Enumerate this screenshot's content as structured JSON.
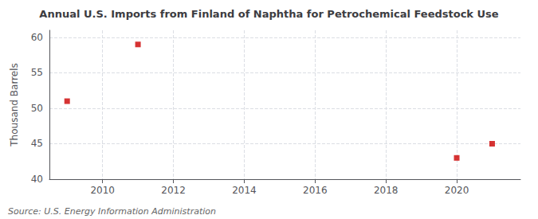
{
  "chart_data": {
    "type": "scatter",
    "title": "Annual U.S. Imports from Finland of Naphtha for Petrochemical Feedstock Use",
    "ylabel": "Thousand Barrels",
    "annotations": [
      "Source: U.S. Energy Information Administration"
    ],
    "x": [
      2009,
      2011,
      2020,
      2021
    ],
    "values": [
      51,
      59,
      43,
      45
    ],
    "color": "#cc0000",
    "marker": "square",
    "xlim": [
      2008.5,
      2021.8
    ],
    "ylim": [
      40,
      61
    ],
    "xticks": [
      2010,
      2012,
      2014,
      2016,
      2018,
      2020
    ],
    "yticks": [
      40,
      45,
      50,
      55,
      60
    ],
    "grid": true
  }
}
